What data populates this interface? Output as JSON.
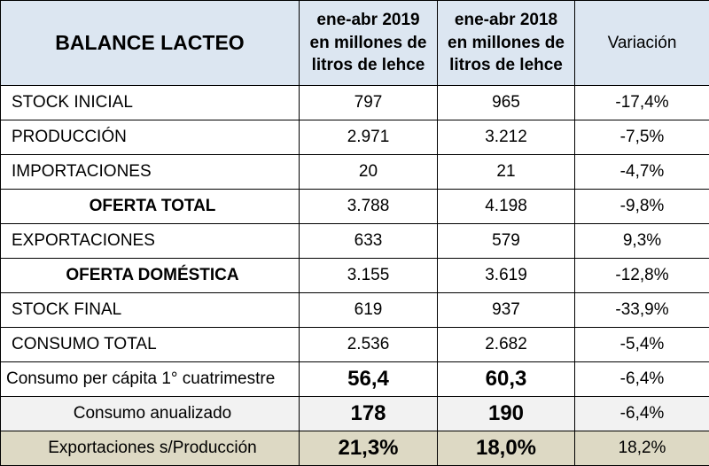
{
  "header": {
    "title": "BALANCE LACTEO",
    "col1": [
      "ene-abr 2019",
      "en millones de",
      "litros de lehce"
    ],
    "col2": [
      "ene-abr 2018",
      "en millones de",
      "litros de lehce"
    ],
    "col3": "Variación"
  },
  "rows": [
    {
      "label": "STOCK INICIAL",
      "v2019": "797",
      "v2018": "965",
      "var": "-17,4%"
    },
    {
      "label": "PRODUCCIÓN",
      "v2019": "2.971",
      "v2018": "3.212",
      "var": "-7,5%"
    },
    {
      "label": "IMPORTACIONES",
      "v2019": "20",
      "v2018": "21",
      "var": "-4,7%"
    },
    {
      "label": "OFERTA TOTAL",
      "v2019": "3.788",
      "v2018": "4.198",
      "var": "-9,8%"
    },
    {
      "label": "EXPORTACIONES",
      "v2019": "633",
      "v2018": "579",
      "var": "9,3%"
    },
    {
      "label": "OFERTA DOMÉSTICA",
      "v2019": "3.155",
      "v2018": "3.619",
      "var": "-12,8%"
    },
    {
      "label": "STOCK FINAL",
      "v2019": "619",
      "v2018": "937",
      "var": "-33,9%"
    },
    {
      "label": "CONSUMO TOTAL",
      "v2019": "2.536",
      "v2018": "2.682",
      "var": "-5,4%"
    },
    {
      "label": "Consumo per cápita 1° cuatrimestre",
      "v2019": "56,4",
      "v2018": "60,3",
      "var": "-6,4%"
    },
    {
      "label": "Consumo anualizado",
      "v2019": "178",
      "v2018": "190",
      "var": "-6,4%"
    },
    {
      "label": "Exportaciones s/Producción",
      "v2019": "21,3%",
      "v2018": "18,0%",
      "var": "18,2%"
    }
  ],
  "colors": {
    "header_bg": "#dce6f1",
    "annualized_bg": "#f2f2f2",
    "exports_bg": "#ddd9c4",
    "border": "#000000"
  }
}
